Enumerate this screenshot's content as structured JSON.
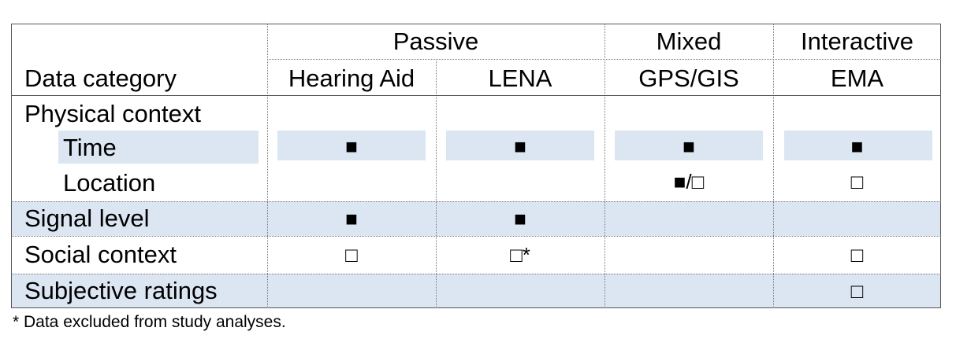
{
  "header": {
    "groups": [
      "Passive",
      "Mixed",
      "Interactive"
    ],
    "data_category_label": "Data category",
    "columns": [
      "Hearing Aid",
      "LENA",
      "GPS/GIS",
      "EMA"
    ]
  },
  "rows": [
    {
      "label": "Physical context",
      "cells": [
        "",
        "",
        "",
        ""
      ]
    },
    {
      "label": "Time",
      "cells": [
        "■",
        "■",
        "■",
        "■"
      ]
    },
    {
      "label": "Location",
      "cells": [
        "",
        "",
        "■/□",
        "□"
      ]
    },
    {
      "label": "Signal level",
      "cells": [
        "■",
        "■",
        "",
        ""
      ]
    },
    {
      "label": "Social context",
      "cells": [
        "□",
        "□*",
        "",
        "□"
      ]
    },
    {
      "label": "Subjective ratings",
      "cells": [
        "",
        "",
        "",
        "□"
      ]
    }
  ],
  "footnote": "* Data excluded from study analyses.",
  "colors": {
    "band": "#dce6f2",
    "border": "#555555"
  }
}
